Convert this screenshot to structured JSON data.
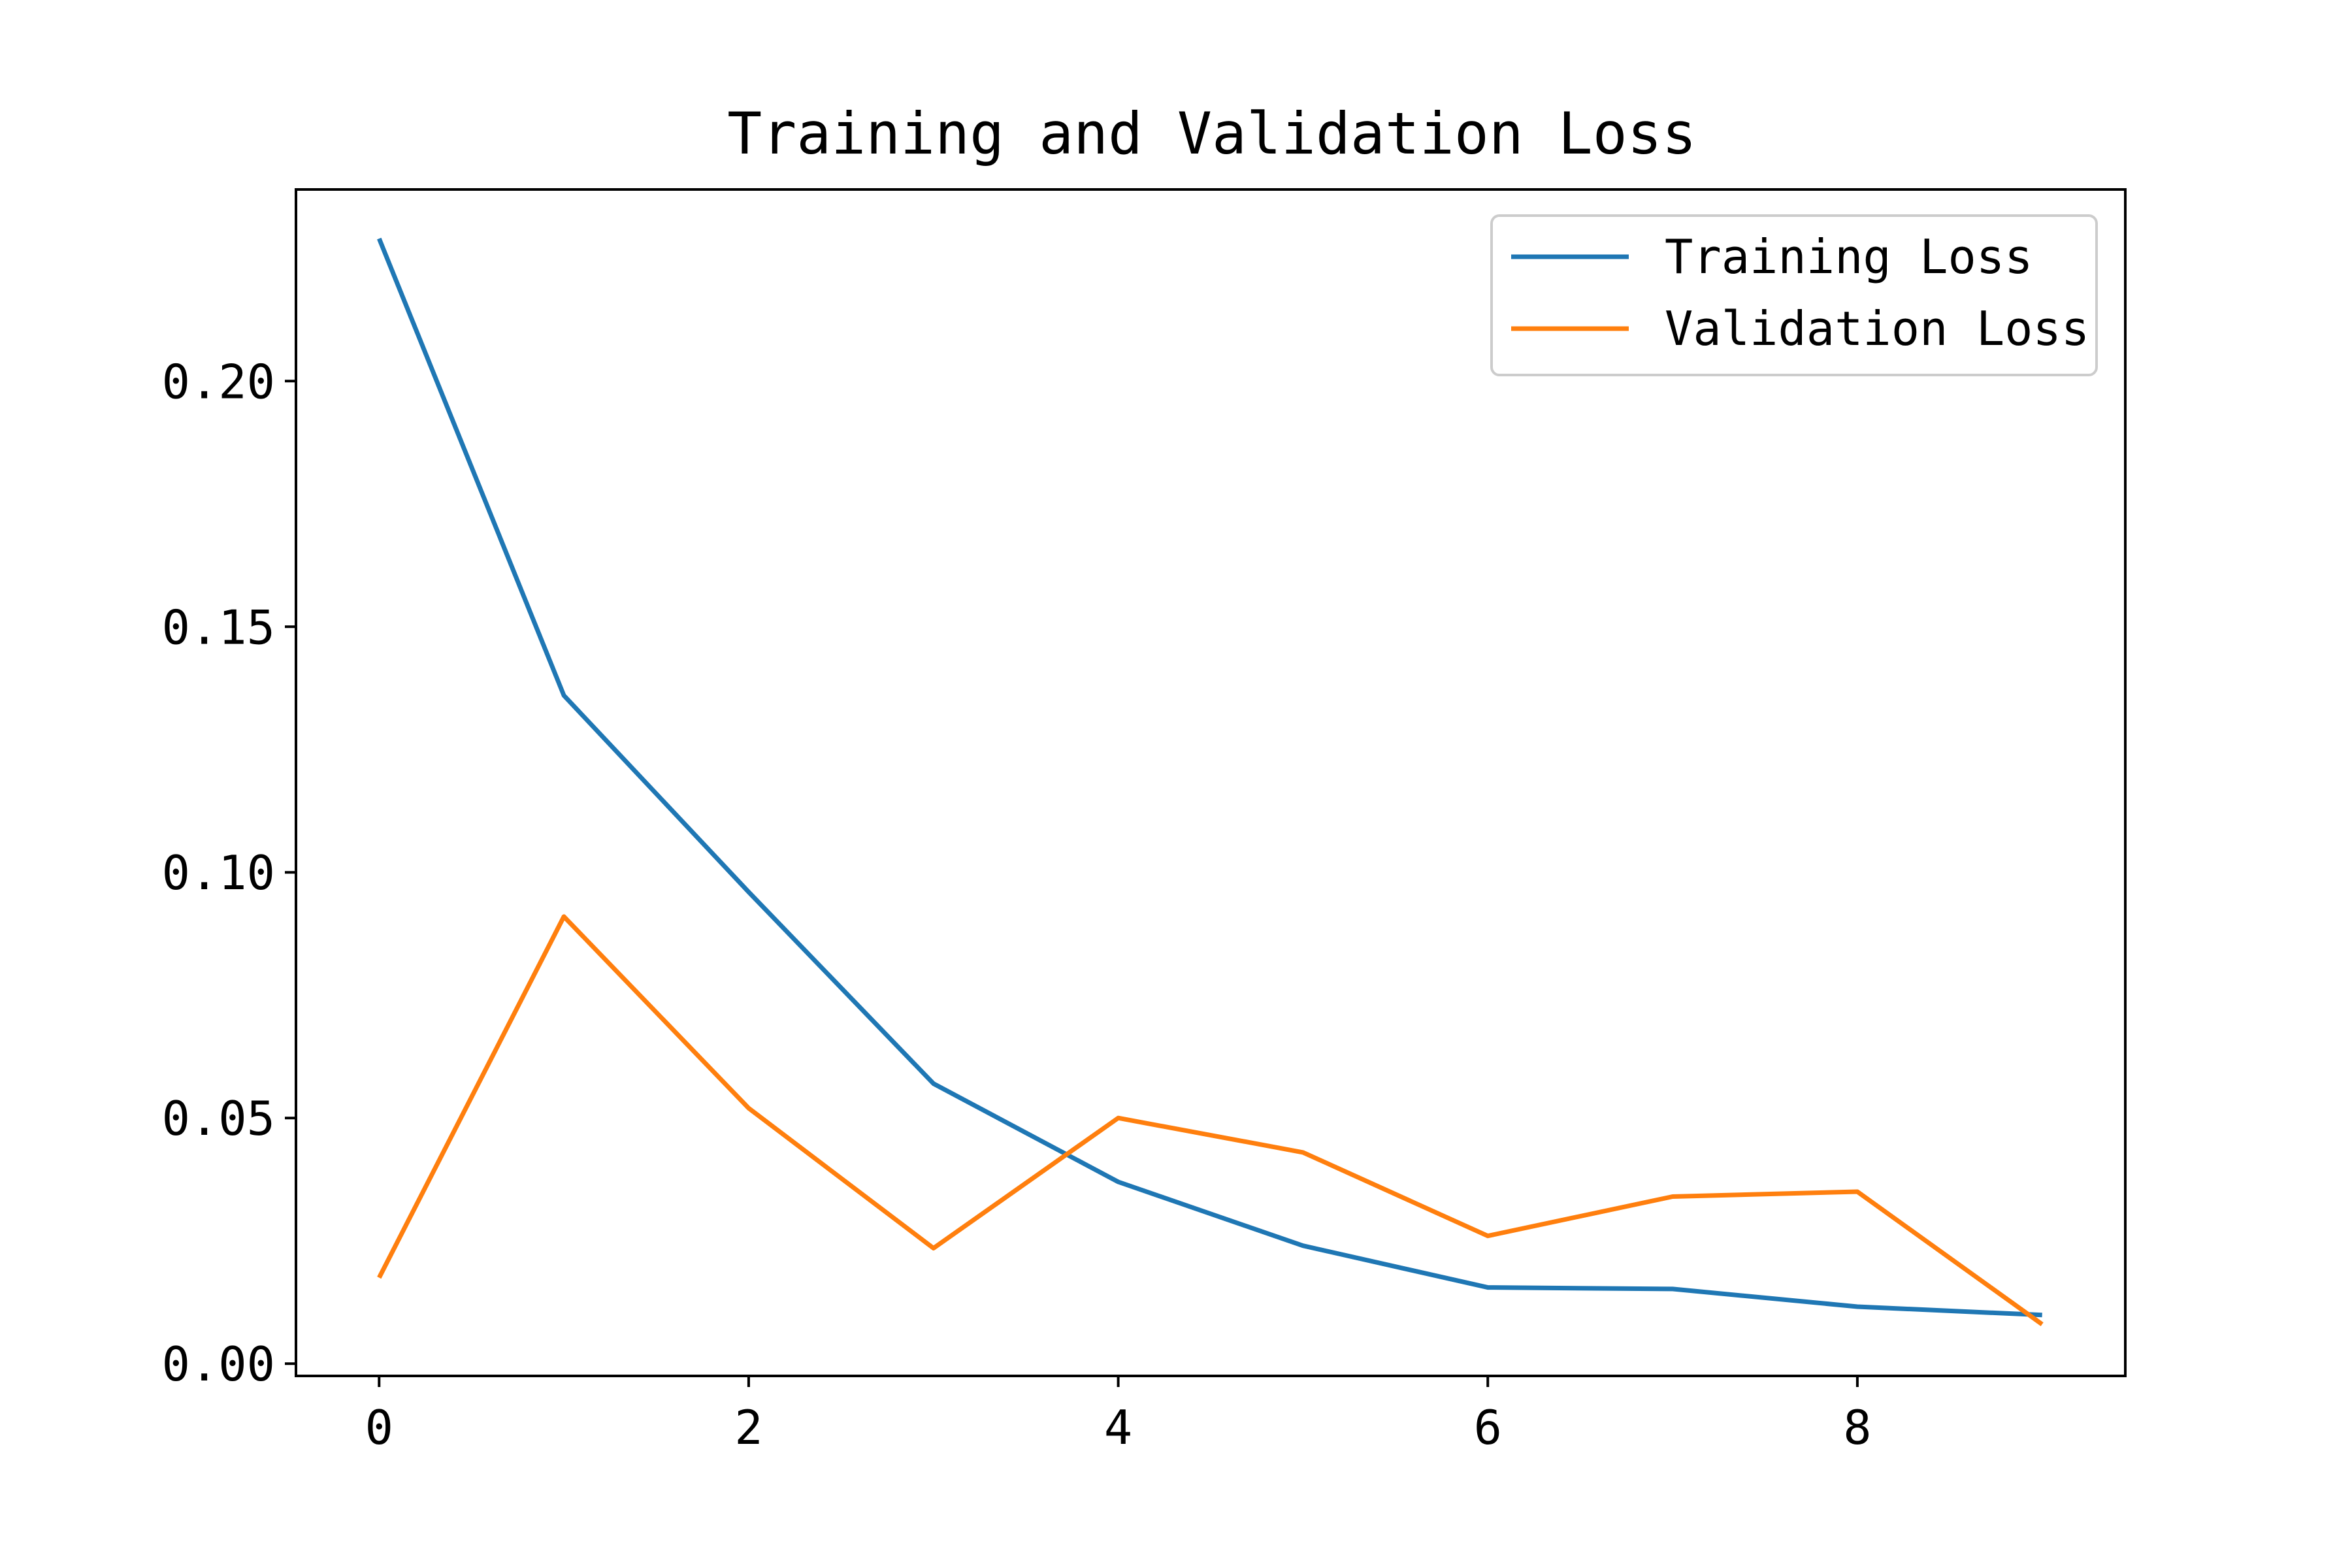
{
  "chart_data": {
    "type": "line",
    "title": "Training and Validation Loss",
    "xlabel": "",
    "ylabel": "",
    "xlim": [
      -0.45,
      9.45
    ],
    "ylim": [
      -0.0025,
      0.239
    ],
    "x_ticks": [
      0,
      2,
      4,
      6,
      8
    ],
    "y_ticks": [
      0.0,
      0.05,
      0.1,
      0.15,
      0.2
    ],
    "y_tick_labels": [
      "0.00",
      "0.05",
      "0.10",
      "0.15",
      "0.20"
    ],
    "grid": false,
    "legend_position": "top-right",
    "x": [
      0,
      1,
      2,
      3,
      4,
      5,
      6,
      7,
      8,
      9
    ],
    "series": [
      {
        "name": "Training Loss",
        "color": "#1f77b4",
        "values": [
          0.229,
          0.136,
          0.096,
          0.057,
          0.037,
          0.024,
          0.0155,
          0.0152,
          0.0116,
          0.0099
        ]
      },
      {
        "name": "Validation Loss",
        "color": "#ff7f0e",
        "values": [
          0.0175,
          0.091,
          0.052,
          0.0235,
          0.05,
          0.043,
          0.026,
          0.034,
          0.035,
          0.008
        ]
      }
    ]
  }
}
